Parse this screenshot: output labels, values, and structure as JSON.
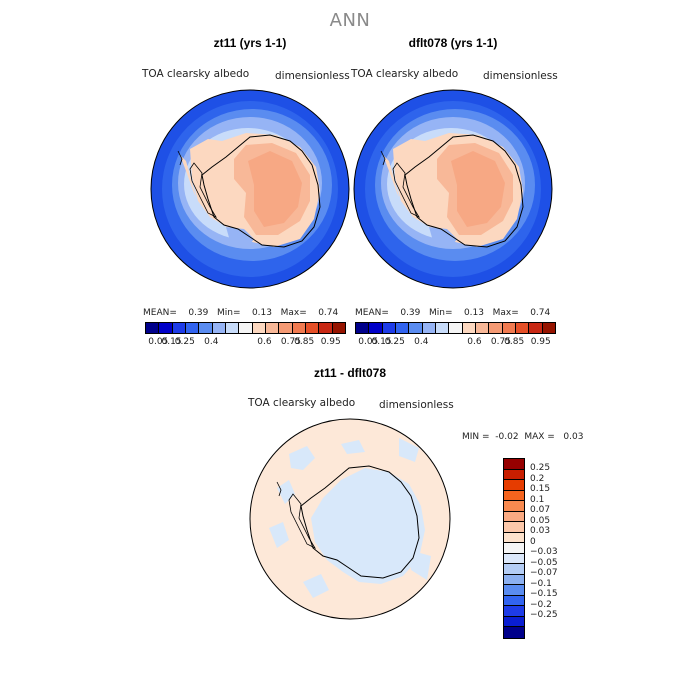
{
  "suptitle": "ANN",
  "panels": {
    "left": {
      "title": "zt11 (yrs 1-1)",
      "variable": "TOA clearsky albedo",
      "units": "dimensionless",
      "stats": {
        "mean_label": "MEAN=",
        "mean": "0.39",
        "min_label": "Min=",
        "min": "0.13",
        "max_label": "Max=",
        "max": "0.74"
      }
    },
    "right": {
      "title": "dflt078 (yrs 1-1)",
      "variable": "TOA clearsky albedo",
      "units": "dimensionless",
      "stats": {
        "mean_label": "MEAN=",
        "mean": "0.39",
        "min_label": "Min=",
        "min": "0.13",
        "max_label": "Max=",
        "max": "0.74"
      }
    },
    "diff": {
      "title": "zt11 - dflt078",
      "variable": "TOA clearsky albedo",
      "units": "dimensionless",
      "stats": {
        "min_label": "MIN =",
        "min": "-0.02",
        "max_label": "MAX =",
        "max": "0.03"
      }
    }
  },
  "colorbar_top": {
    "colors": [
      "#00008b",
      "#0000c8",
      "#1e3ce8",
      "#3264f0",
      "#5a8cf0",
      "#96b4f5",
      "#c8dcfa",
      "#f5f5f5",
      "#fcd8c0",
      "#f8b898",
      "#f59a74",
      "#f07a50",
      "#e65028",
      "#c82814",
      "#961400"
    ],
    "tick_labels": [
      "0.05",
      "0.15",
      "0.25",
      "0.4",
      "0.6",
      "0.75",
      "0.85",
      "0.95"
    ]
  },
  "colorbar_diff": {
    "colors": [
      "#960000",
      "#c81e00",
      "#e63c00",
      "#f5641e",
      "#f88a50",
      "#faaa82",
      "#fcc8aa",
      "#fde2cc",
      "#f5f5f5",
      "#dce8fa",
      "#b4cdf5",
      "#8cb0f0",
      "#5a8cf0",
      "#3264f0",
      "#1e3ce8",
      "#0a1ed2",
      "#00008b"
    ],
    "labels": [
      "0.25",
      "0.2",
      "0.15",
      "0.1",
      "0.07",
      "0.05",
      "0.03",
      "0",
      "−0.03",
      "−0.05",
      "−0.07",
      "−0.1",
      "−0.15",
      "−0.2",
      "−0.25"
    ]
  }
}
